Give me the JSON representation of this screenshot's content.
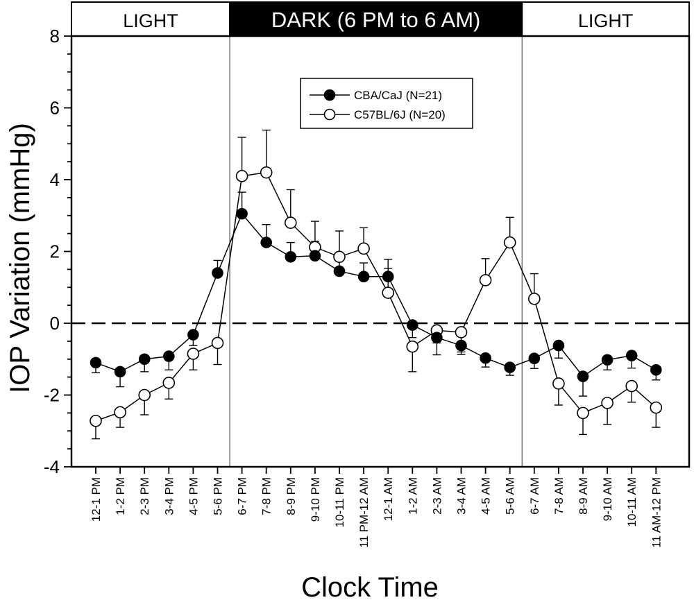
{
  "chart_data": {
    "type": "line",
    "title": "",
    "ylabel": "IOP Variation (mmHg)",
    "xlabel": "Clock Time",
    "ylim": [
      -4,
      8
    ],
    "yticks": [
      -4,
      -2,
      0,
      2,
      4,
      6,
      8
    ],
    "ytick_labels": [
      "-4",
      "-2",
      "0",
      "2",
      "4",
      "6",
      "8"
    ],
    "zero_reference_line": "dashed",
    "categories": [
      "12-1 PM",
      "1-2 PM",
      "2-3 PM",
      "3-4 PM",
      "4-5 PM",
      "5-6 PM",
      "6-7 PM",
      "7-8 PM",
      "8-9 PM",
      "9-10 PM",
      "10-11 PM",
      "11 PM-12 AM",
      "12-1 AM",
      "1-2 AM",
      "2-3 AM",
      "3-4 AM",
      "4-5 AM",
      "5-6 AM",
      "6-7 AM",
      "7-8 AM",
      "8-9 AM",
      "9-10 AM",
      "10-11 AM",
      "11 AM-12 PM"
    ],
    "phases": [
      {
        "label": "LIGHT",
        "style": "light",
        "start": 0,
        "end": 6
      },
      {
        "label": "DARK (6 PM to 6 AM)",
        "style": "dark",
        "start": 6,
        "end": 18
      },
      {
        "label": "LIGHT",
        "style": "light",
        "start": 18,
        "end": 24
      }
    ],
    "legend": {
      "position": "top-center"
    },
    "series": [
      {
        "name": "CBA/CaJ (N=21)",
        "marker": "filled-circle",
        "values": [
          -1.1,
          -1.35,
          -1.0,
          -0.92,
          -0.32,
          1.4,
          3.05,
          2.25,
          1.85,
          1.88,
          1.45,
          1.3,
          1.3,
          -0.05,
          -0.4,
          -0.62,
          -0.97,
          -1.23,
          -0.98,
          -0.62,
          -1.48,
          -1.02,
          -0.9,
          -1.3
        ],
        "errors": [
          0.28,
          0.42,
          0.35,
          0.38,
          0.3,
          0.35,
          0.6,
          0.5,
          0.4,
          0.4,
          0.35,
          0.38,
          0.48,
          0.35,
          0.15,
          0.25,
          0.25,
          0.22,
          0.28,
          0.35,
          0.55,
          0.28,
          0.35,
          0.28
        ]
      },
      {
        "name": "C57BL/6J (N=20)",
        "marker": "open-circle",
        "values": [
          -2.72,
          -2.48,
          -2.0,
          -1.66,
          -0.85,
          -0.55,
          4.1,
          4.2,
          2.8,
          2.12,
          1.85,
          2.08,
          0.85,
          -0.65,
          -0.2,
          -0.25,
          1.2,
          2.25,
          0.68,
          -1.68,
          -2.5,
          -2.22,
          -1.75,
          -2.35
        ],
        "errors": [
          0.5,
          0.42,
          0.55,
          0.45,
          0.45,
          0.6,
          1.08,
          1.18,
          0.92,
          0.72,
          0.72,
          0.58,
          0.68,
          0.7,
          0.68,
          0.55,
          0.6,
          0.7,
          0.7,
          0.6,
          0.6,
          0.6,
          0.45,
          0.55
        ]
      }
    ]
  }
}
